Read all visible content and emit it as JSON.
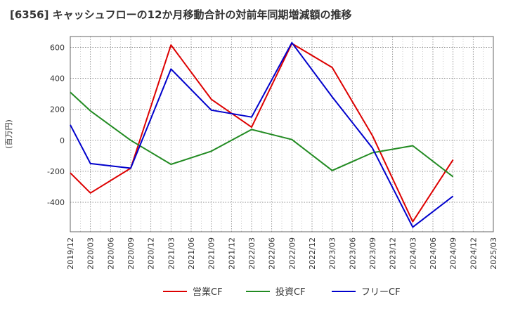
{
  "chart_data": {
    "type": "line",
    "title": "[6356]  キャッシュフローの12か月移動合計の対前年同期増減額の推移",
    "ylabel": "(百万円)",
    "xlabel": "",
    "categories": [
      "2019/12",
      "2020/03",
      "2020/06",
      "2020/09",
      "2020/12",
      "2021/03",
      "2021/06",
      "2021/09",
      "2021/12",
      "2022/03",
      "2022/06",
      "2022/09",
      "2022/12",
      "2023/03",
      "2023/06",
      "2023/09",
      "2023/12",
      "2024/03",
      "2024/06",
      "2024/09",
      "2024/12",
      "2025/03"
    ],
    "yticks": [
      600,
      400,
      200,
      0,
      -200,
      -400
    ],
    "ylim": [
      -590,
      670
    ],
    "grid": true,
    "legend_position": "bottom",
    "series": [
      {
        "name": "営業CF",
        "color": "#dd0000",
        "values": [
          -210,
          -340,
          null,
          -180,
          null,
          615,
          null,
          265,
          null,
          85,
          null,
          625,
          null,
          470,
          null,
          30,
          null,
          -525,
          null,
          -125,
          null,
          null
        ]
      },
      {
        "name": "投資CF",
        "color": "#228b22",
        "values": [
          310,
          190,
          null,
          0,
          null,
          -155,
          null,
          -70,
          null,
          70,
          null,
          5,
          null,
          -195,
          null,
          -80,
          null,
          -35,
          null,
          -235,
          null,
          null
        ]
      },
      {
        "name": "フリーCF",
        "color": "#0000cc",
        "values": [
          100,
          -150,
          null,
          -180,
          null,
          460,
          null,
          195,
          null,
          150,
          null,
          630,
          null,
          280,
          null,
          -50,
          null,
          -560,
          null,
          -360,
          null,
          null
        ]
      }
    ]
  }
}
